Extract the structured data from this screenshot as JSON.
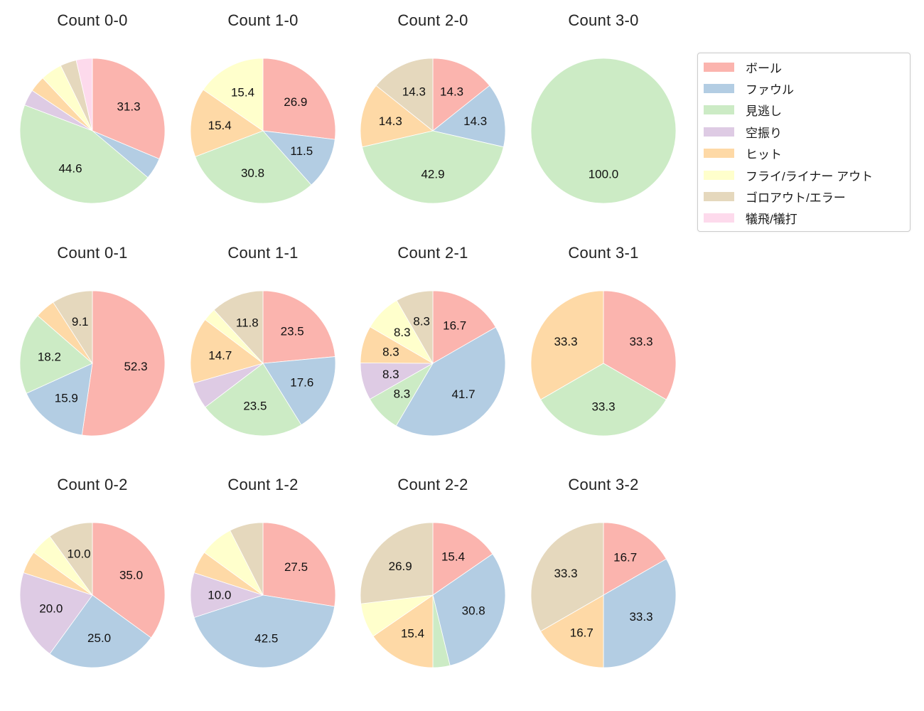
{
  "figure": {
    "background_color": "#ffffff",
    "text_color": "#222222"
  },
  "legend": {
    "position": "upper right",
    "entries": [
      {
        "label": "ボール",
        "color": "#fbb4ae"
      },
      {
        "label": "ファウル",
        "color": "#b3cde3"
      },
      {
        "label": "見逃し",
        "color": "#ccebc5"
      },
      {
        "label": "空振り",
        "color": "#decbe4"
      },
      {
        "label": "ヒット",
        "color": "#fed9a6"
      },
      {
        "label": "フライ/ライナー アウト",
        "color": "#ffffcc"
      },
      {
        "label": "ゴロアウト/エラー",
        "color": "#e5d8bd"
      },
      {
        "label": "犠飛/犠打",
        "color": "#fddaec"
      }
    ]
  },
  "chart_data": {
    "type": "pie",
    "layout_note": "12 pie charts in a 4x3 grid; slices start at 12 o'clock and run clockwise; percentage labels shown only for slices >= 8%; values are percents",
    "grid": {
      "rows": 3,
      "cols": 4
    },
    "label_threshold_pct": 8,
    "pies": [
      {
        "title": "Count 0-0",
        "slices": [
          {
            "category": "ボール",
            "value": 31.3
          },
          {
            "category": "ファウル",
            "value": 4.8
          },
          {
            "category": "見逃し",
            "value": 44.6
          },
          {
            "category": "空振り",
            "value": 3.6
          },
          {
            "category": "ヒット",
            "value": 3.6
          },
          {
            "category": "フライ/ライナー アウト",
            "value": 4.8
          },
          {
            "category": "ゴロアウト/エラー",
            "value": 3.6
          },
          {
            "category": "犠飛/犠打",
            "value": 3.6
          }
        ]
      },
      {
        "title": "Count 1-0",
        "slices": [
          {
            "category": "ボール",
            "value": 26.9
          },
          {
            "category": "ファウル",
            "value": 11.5
          },
          {
            "category": "見逃し",
            "value": 30.8
          },
          {
            "category": "ヒット",
            "value": 15.4
          },
          {
            "category": "フライ/ライナー アウト",
            "value": 15.4
          }
        ]
      },
      {
        "title": "Count 2-0",
        "slices": [
          {
            "category": "ボール",
            "value": 14.3
          },
          {
            "category": "ファウル",
            "value": 14.3
          },
          {
            "category": "見逃し",
            "value": 42.9
          },
          {
            "category": "ヒット",
            "value": 14.3
          },
          {
            "category": "ゴロアウト/エラー",
            "value": 14.3
          }
        ]
      },
      {
        "title": "Count 3-0",
        "slices": [
          {
            "category": "見逃し",
            "value": 100.0
          }
        ]
      },
      {
        "title": "Count 0-1",
        "slices": [
          {
            "category": "ボール",
            "value": 52.3
          },
          {
            "category": "ファウル",
            "value": 15.9
          },
          {
            "category": "見逃し",
            "value": 18.2
          },
          {
            "category": "ヒット",
            "value": 4.5
          },
          {
            "category": "ゴロアウト/エラー",
            "value": 9.1
          }
        ]
      },
      {
        "title": "Count 1-1",
        "slices": [
          {
            "category": "ボール",
            "value": 23.5
          },
          {
            "category": "ファウル",
            "value": 17.6
          },
          {
            "category": "見逃し",
            "value": 23.5
          },
          {
            "category": "空振り",
            "value": 5.9
          },
          {
            "category": "ヒット",
            "value": 14.7
          },
          {
            "category": "フライ/ライナー アウト",
            "value": 2.9
          },
          {
            "category": "ゴロアウト/エラー",
            "value": 11.8
          }
        ]
      },
      {
        "title": "Count 2-1",
        "slices": [
          {
            "category": "ボール",
            "value": 16.7
          },
          {
            "category": "ファウル",
            "value": 41.7
          },
          {
            "category": "見逃し",
            "value": 8.3
          },
          {
            "category": "空振り",
            "value": 8.3
          },
          {
            "category": "ヒット",
            "value": 8.3
          },
          {
            "category": "フライ/ライナー アウト",
            "value": 8.3
          },
          {
            "category": "ゴロアウト/エラー",
            "value": 8.3
          }
        ]
      },
      {
        "title": "Count 3-1",
        "slices": [
          {
            "category": "ボール",
            "value": 33.3
          },
          {
            "category": "見逃し",
            "value": 33.3
          },
          {
            "category": "ヒット",
            "value": 33.3
          }
        ]
      },
      {
        "title": "Count 0-2",
        "slices": [
          {
            "category": "ボール",
            "value": 35.0
          },
          {
            "category": "ファウル",
            "value": 25.0
          },
          {
            "category": "空振り",
            "value": 20.0
          },
          {
            "category": "ヒット",
            "value": 5.0
          },
          {
            "category": "フライ/ライナー アウト",
            "value": 5.0
          },
          {
            "category": "ゴロアウト/エラー",
            "value": 10.0
          }
        ]
      },
      {
        "title": "Count 1-2",
        "slices": [
          {
            "category": "ボール",
            "value": 27.5
          },
          {
            "category": "ファウル",
            "value": 42.5
          },
          {
            "category": "空振り",
            "value": 10.0
          },
          {
            "category": "ヒット",
            "value": 5.0
          },
          {
            "category": "フライ/ライナー アウト",
            "value": 7.5
          },
          {
            "category": "ゴロアウト/エラー",
            "value": 7.5
          }
        ]
      },
      {
        "title": "Count 2-2",
        "slices": [
          {
            "category": "ボール",
            "value": 15.4
          },
          {
            "category": "ファウル",
            "value": 30.8
          },
          {
            "category": "見逃し",
            "value": 3.8
          },
          {
            "category": "ヒット",
            "value": 15.4
          },
          {
            "category": "フライ/ライナー アウト",
            "value": 7.7
          },
          {
            "category": "ゴロアウト/エラー",
            "value": 26.9
          }
        ]
      },
      {
        "title": "Count 3-2",
        "slices": [
          {
            "category": "ボール",
            "value": 16.7
          },
          {
            "category": "ファウル",
            "value": 33.3
          },
          {
            "category": "ヒット",
            "value": 16.7
          },
          {
            "category": "ゴロアウト/エラー",
            "value": 33.3
          }
        ]
      }
    ]
  }
}
